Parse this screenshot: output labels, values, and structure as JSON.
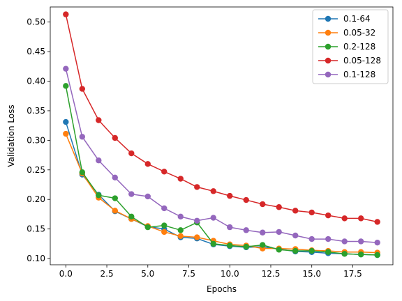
{
  "chart_data": {
    "type": "line",
    "xlabel": "Epochs",
    "ylabel": "Validation Loss",
    "xlim": [
      -0.95,
      19.95
    ],
    "ylim": [
      0.0895,
      0.5255
    ],
    "xticks": [
      0.0,
      2.5,
      5.0,
      7.5,
      10.0,
      12.5,
      15.0,
      17.5
    ],
    "xtick_labels": [
      "0.0",
      "2.5",
      "5.0",
      "7.5",
      "10.0",
      "12.5",
      "15.0",
      "17.5"
    ],
    "yticks": [
      0.1,
      0.15,
      0.2,
      0.25,
      0.3,
      0.35,
      0.4,
      0.45,
      0.5
    ],
    "ytick_labels": [
      "0.10",
      "0.15",
      "0.20",
      "0.25",
      "0.30",
      "0.35",
      "0.40",
      "0.45",
      "0.50"
    ],
    "grid": false,
    "legend_position": "top-right",
    "x": [
      0,
      1,
      2,
      3,
      4,
      5,
      6,
      7,
      8,
      9,
      10,
      11,
      12,
      13,
      14,
      15,
      16,
      17,
      18,
      19
    ],
    "series": [
      {
        "name": "0.1-64",
        "color": "#1f77b4",
        "values": [
          0.331,
          0.242,
          0.208,
          0.18,
          0.167,
          0.154,
          0.15,
          0.136,
          0.134,
          0.124,
          0.121,
          0.119,
          0.12,
          0.116,
          0.112,
          0.111,
          0.109,
          0.108,
          0.107,
          0.106
        ]
      },
      {
        "name": "0.05-32",
        "color": "#ff7f0e",
        "values": [
          0.311,
          0.244,
          0.203,
          0.181,
          0.167,
          0.155,
          0.145,
          0.138,
          0.136,
          0.13,
          0.124,
          0.122,
          0.117,
          0.117,
          0.116,
          0.114,
          0.113,
          0.111,
          0.111,
          0.11
        ]
      },
      {
        "name": "0.2-128",
        "color": "#2ca02c",
        "values": [
          0.392,
          0.246,
          0.207,
          0.202,
          0.171,
          0.153,
          0.156,
          0.148,
          0.161,
          0.125,
          0.122,
          0.12,
          0.123,
          0.115,
          0.113,
          0.113,
          0.111,
          0.108,
          0.107,
          0.106
        ]
      },
      {
        "name": "0.05-128",
        "color": "#d62728",
        "values": [
          0.513,
          0.387,
          0.334,
          0.304,
          0.278,
          0.26,
          0.247,
          0.235,
          0.221,
          0.214,
          0.206,
          0.199,
          0.192,
          0.187,
          0.181,
          0.178,
          0.173,
          0.168,
          0.168,
          0.162
        ]
      },
      {
        "name": "0.1-128",
        "color": "#9467bd",
        "values": [
          0.421,
          0.306,
          0.266,
          0.237,
          0.209,
          0.205,
          0.185,
          0.171,
          0.164,
          0.169,
          0.153,
          0.148,
          0.144,
          0.145,
          0.139,
          0.133,
          0.133,
          0.129,
          0.129,
          0.127
        ]
      }
    ]
  }
}
